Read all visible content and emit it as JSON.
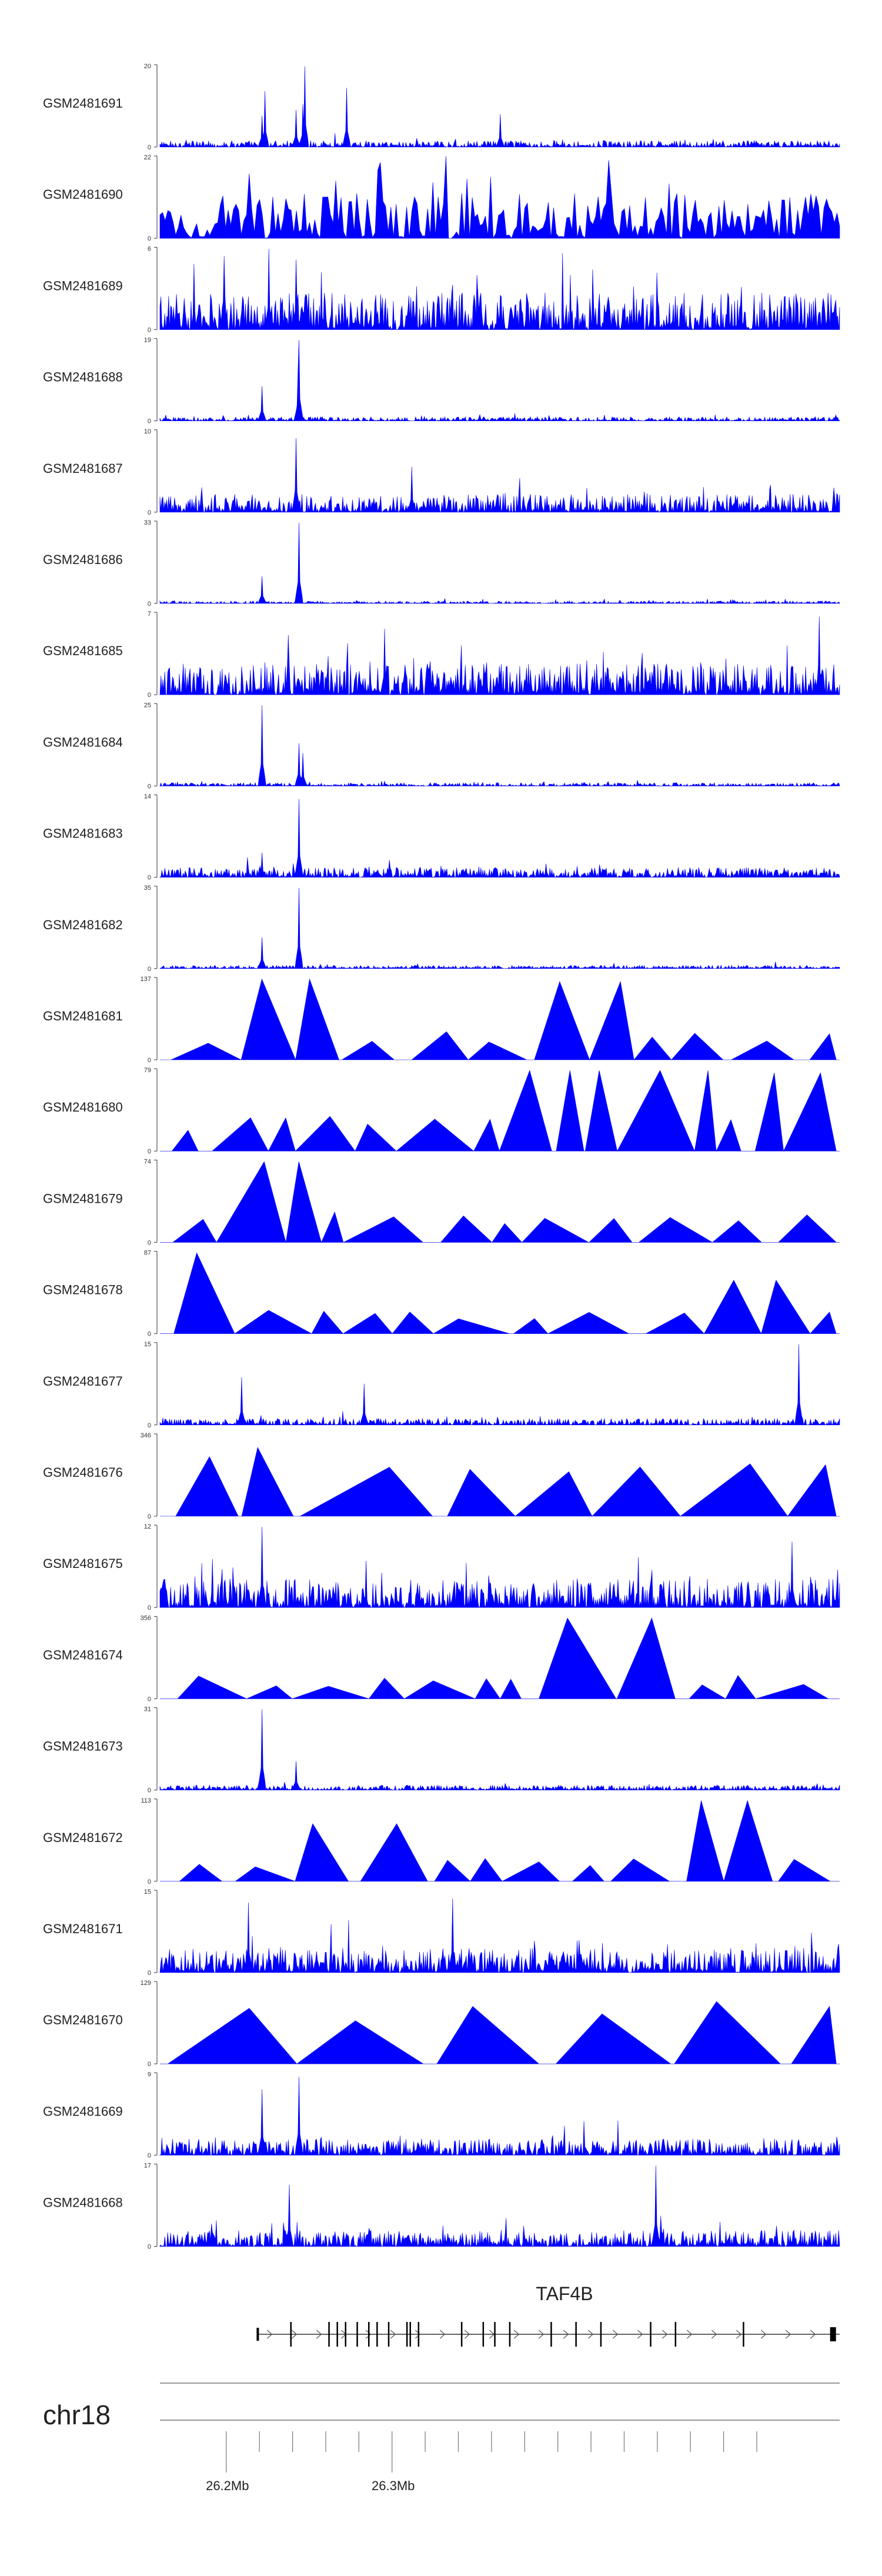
{
  "chart_data": {
    "type": "area",
    "title": "",
    "xlabel": "chr18",
    "x_range_mb": [
      26.16,
      26.57
    ],
    "x_tick_labels": [
      "26.2Mb",
      "26.3Mb"
    ],
    "tracks": [
      {
        "name": "GSM2481691",
        "ymax": 20,
        "ymin": 0,
        "style": "noisy",
        "base": 0.08,
        "peaks": [
          [
            0.15,
            0.38
          ],
          [
            0.155,
            0.68
          ],
          [
            0.213,
            0.98
          ],
          [
            0.21,
            0.52
          ],
          [
            0.275,
            0.72
          ],
          [
            0.2,
            0.45
          ],
          [
            0.5,
            0.4
          ]
        ]
      },
      {
        "name": "GSM2481690",
        "ymax": 22,
        "ymin": 0,
        "style": "spiky",
        "base": 0.55,
        "peaks": [
          [
            0.66,
            0.95
          ],
          [
            0.26,
            0.7
          ]
        ]
      },
      {
        "name": "GSM2481689",
        "ymax": 6,
        "ymin": 0,
        "style": "noisy",
        "base": 0.45,
        "peaks": [
          [
            0.16,
            0.98
          ],
          [
            0.2,
            0.85
          ]
        ]
      },
      {
        "name": "GSM2481688",
        "ymax": 19,
        "ymin": 0,
        "style": "noisy",
        "base": 0.05,
        "peaks": [
          [
            0.15,
            0.42
          ],
          [
            0.205,
            0.98
          ],
          [
            0.203,
            0.6
          ]
        ]
      },
      {
        "name": "GSM2481687",
        "ymax": 10,
        "ymin": 0,
        "style": "noisy",
        "base": 0.22,
        "peaks": [
          [
            0.2,
            0.9
          ],
          [
            0.37,
            0.55
          ]
        ]
      },
      {
        "name": "GSM2481686",
        "ymax": 33,
        "ymin": 0,
        "style": "noisy",
        "base": 0.03,
        "peaks": [
          [
            0.15,
            0.33
          ],
          [
            0.205,
            0.98
          ]
        ]
      },
      {
        "name": "GSM2481685",
        "ymax": 7,
        "ymin": 0,
        "style": "noisy",
        "base": 0.38,
        "peaks": [
          [
            0.97,
            0.95
          ],
          [
            0.33,
            0.8
          ]
        ]
      },
      {
        "name": "GSM2481684",
        "ymax": 25,
        "ymin": 0,
        "style": "noisy",
        "base": 0.04,
        "peaks": [
          [
            0.15,
            0.98
          ],
          [
            0.205,
            0.52
          ],
          [
            0.21,
            0.4
          ]
        ]
      },
      {
        "name": "GSM2481683",
        "ymax": 14,
        "ymin": 0,
        "style": "noisy",
        "base": 0.12,
        "peaks": [
          [
            0.205,
            0.95
          ],
          [
            0.15,
            0.3
          ]
        ]
      },
      {
        "name": "GSM2481682",
        "ymax": 35,
        "ymin": 0,
        "style": "noisy",
        "base": 0.04,
        "peaks": [
          [
            0.15,
            0.38
          ],
          [
            0.205,
            0.98
          ]
        ]
      },
      {
        "name": "GSM2481681",
        "ymax": 137,
        "ymin": 0,
        "style": "tri",
        "base": 0.4,
        "peaks": [
          [
            0.22,
            0.98
          ],
          [
            0.65,
            0.95
          ]
        ]
      },
      {
        "name": "GSM2481680",
        "ymax": 79,
        "ymin": 0,
        "style": "tri",
        "base": 0.45,
        "peaks": [
          [
            0.6,
            0.98
          ],
          [
            0.8,
            0.98
          ],
          [
            0.93,
            0.95
          ]
        ]
      },
      {
        "name": "GSM2481679",
        "ymax": 74,
        "ymin": 0,
        "style": "tri",
        "base": 0.45,
        "peaks": [
          [
            0.21,
            0.98
          ]
        ]
      },
      {
        "name": "GSM2481678",
        "ymax": 87,
        "ymin": 0,
        "style": "tri",
        "base": 0.3,
        "peaks": [
          [
            0.04,
            0.98
          ],
          [
            0.86,
            0.65
          ]
        ]
      },
      {
        "name": "GSM2481677",
        "ymax": 15,
        "ymin": 0,
        "style": "noisy",
        "base": 0.08,
        "peaks": [
          [
            0.94,
            0.98
          ],
          [
            0.12,
            0.58
          ],
          [
            0.3,
            0.5
          ]
        ]
      },
      {
        "name": "GSM2481676",
        "ymax": 346,
        "ymin": 0,
        "style": "tri",
        "base": 0.9,
        "peaks": []
      },
      {
        "name": "GSM2481675",
        "ymax": 12,
        "ymin": 0,
        "style": "noisy",
        "base": 0.35,
        "peaks": [
          [
            0.15,
            0.98
          ],
          [
            0.93,
            0.8
          ]
        ]
      },
      {
        "name": "GSM2481674",
        "ymax": 356,
        "ymin": 0,
        "style": "tri",
        "base": 0.3,
        "peaks": [
          [
            0.62,
            0.98
          ],
          [
            0.715,
            0.98
          ]
        ]
      },
      {
        "name": "GSM2481673",
        "ymax": 31,
        "ymin": 0,
        "style": "noisy",
        "base": 0.06,
        "peaks": [
          [
            0.15,
            0.98
          ],
          [
            0.2,
            0.35
          ]
        ]
      },
      {
        "name": "GSM2481672",
        "ymax": 113,
        "ymin": 0,
        "style": "tri",
        "base": 0.35,
        "peaks": [
          [
            0.8,
            0.98
          ],
          [
            0.26,
            0.7
          ]
        ]
      },
      {
        "name": "GSM2481671",
        "ymax": 15,
        "ymin": 0,
        "style": "noisy",
        "base": 0.3,
        "peaks": [
          [
            0.13,
            0.85
          ],
          [
            0.43,
            0.9
          ]
        ]
      },
      {
        "name": "GSM2481670",
        "ymax": 129,
        "ymin": 0,
        "style": "tri",
        "base": 0.95,
        "peaks": []
      },
      {
        "name": "GSM2481669",
        "ymax": 9,
        "ymin": 0,
        "style": "noisy",
        "base": 0.2,
        "peaks": [
          [
            0.205,
            0.95
          ],
          [
            0.15,
            0.8
          ]
        ]
      },
      {
        "name": "GSM2481668",
        "ymax": 17,
        "ymin": 0,
        "style": "noisy",
        "base": 0.2,
        "peaks": [
          [
            0.73,
            0.98
          ],
          [
            0.19,
            0.75
          ]
        ]
      }
    ],
    "gene": {
      "name": "TAF4B",
      "strand": "+",
      "start_mb": 26.219,
      "end_mb": 26.57,
      "exons_mb": [
        26.219,
        26.239,
        26.262,
        26.267,
        26.272,
        26.279,
        26.286,
        26.291,
        26.298,
        26.309,
        26.311,
        26.316,
        26.342,
        26.355,
        26.362,
        26.371,
        26.396,
        26.411,
        26.426,
        26.456,
        26.471,
        26.512,
        26.566
      ]
    },
    "ideogram": {
      "chromosome": "chr18"
    },
    "colors": {
      "signal": "#0000ff",
      "axis": "#333333",
      "text": "#222222"
    }
  }
}
